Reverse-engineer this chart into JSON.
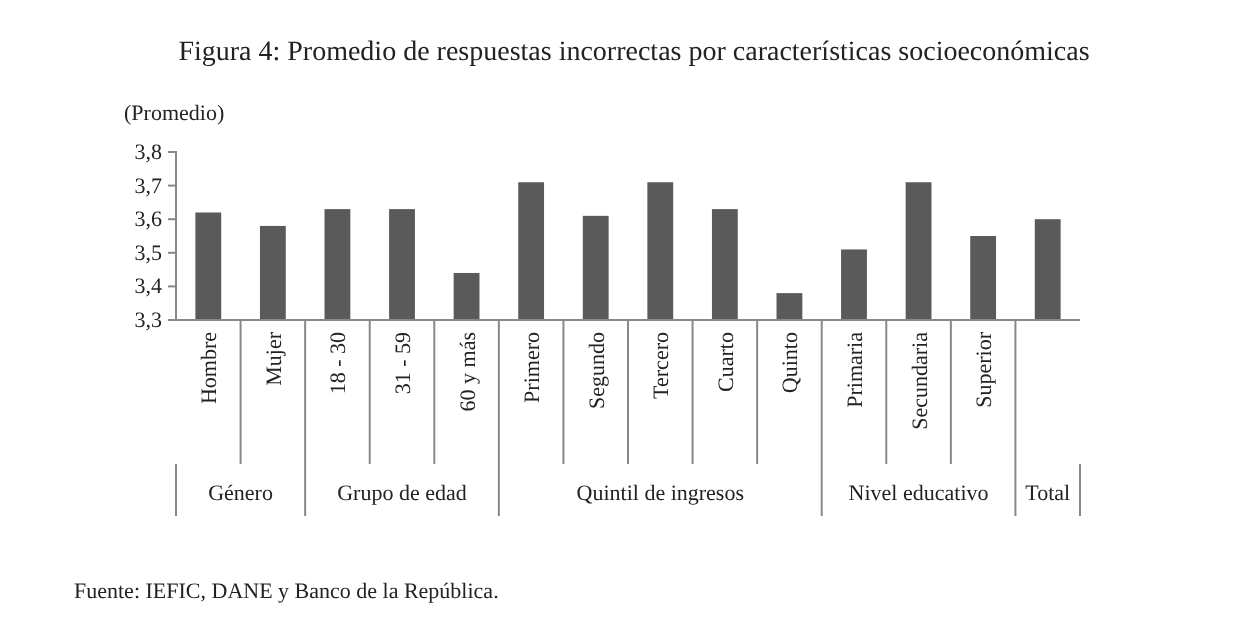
{
  "chart_data": {
    "type": "bar",
    "title": "Figura 4: Promedio de respuestas incorrectas por características socioeconómicas",
    "ylabel": "(Promedio)",
    "categories": [
      "Hombre",
      "Mujer",
      "18 - 30",
      "31 - 59",
      "60 y más",
      "Primero",
      "Segundo",
      "Tercero",
      "Cuarto",
      "Quinto",
      "Primaria",
      "Secundaria",
      "Superior",
      null
    ],
    "values": [
      3.62,
      3.58,
      3.63,
      3.63,
      3.44,
      3.71,
      3.61,
      3.71,
      3.63,
      3.38,
      3.51,
      3.71,
      3.55,
      3.6
    ],
    "color": "#5a5a5a",
    "ylim": [
      3.3,
      3.8
    ],
    "yticks": [
      {
        "value": 3.3,
        "label": "3,3"
      },
      {
        "value": 3.4,
        "label": "3,4"
      },
      {
        "value": 3.5,
        "label": "3,5"
      },
      {
        "value": 3.6,
        "label": "3,6"
      },
      {
        "value": 3.7,
        "label": "3,7"
      },
      {
        "value": 3.8,
        "label": "3,8"
      }
    ],
    "grid": false,
    "annotations": [
      "Género",
      "Grupo de edad",
      "Quintil de ingresos",
      "Nivel educativo",
      "Total",
      "Fuente: IEFIC, DANE y Banco de la República."
    ]
  }
}
